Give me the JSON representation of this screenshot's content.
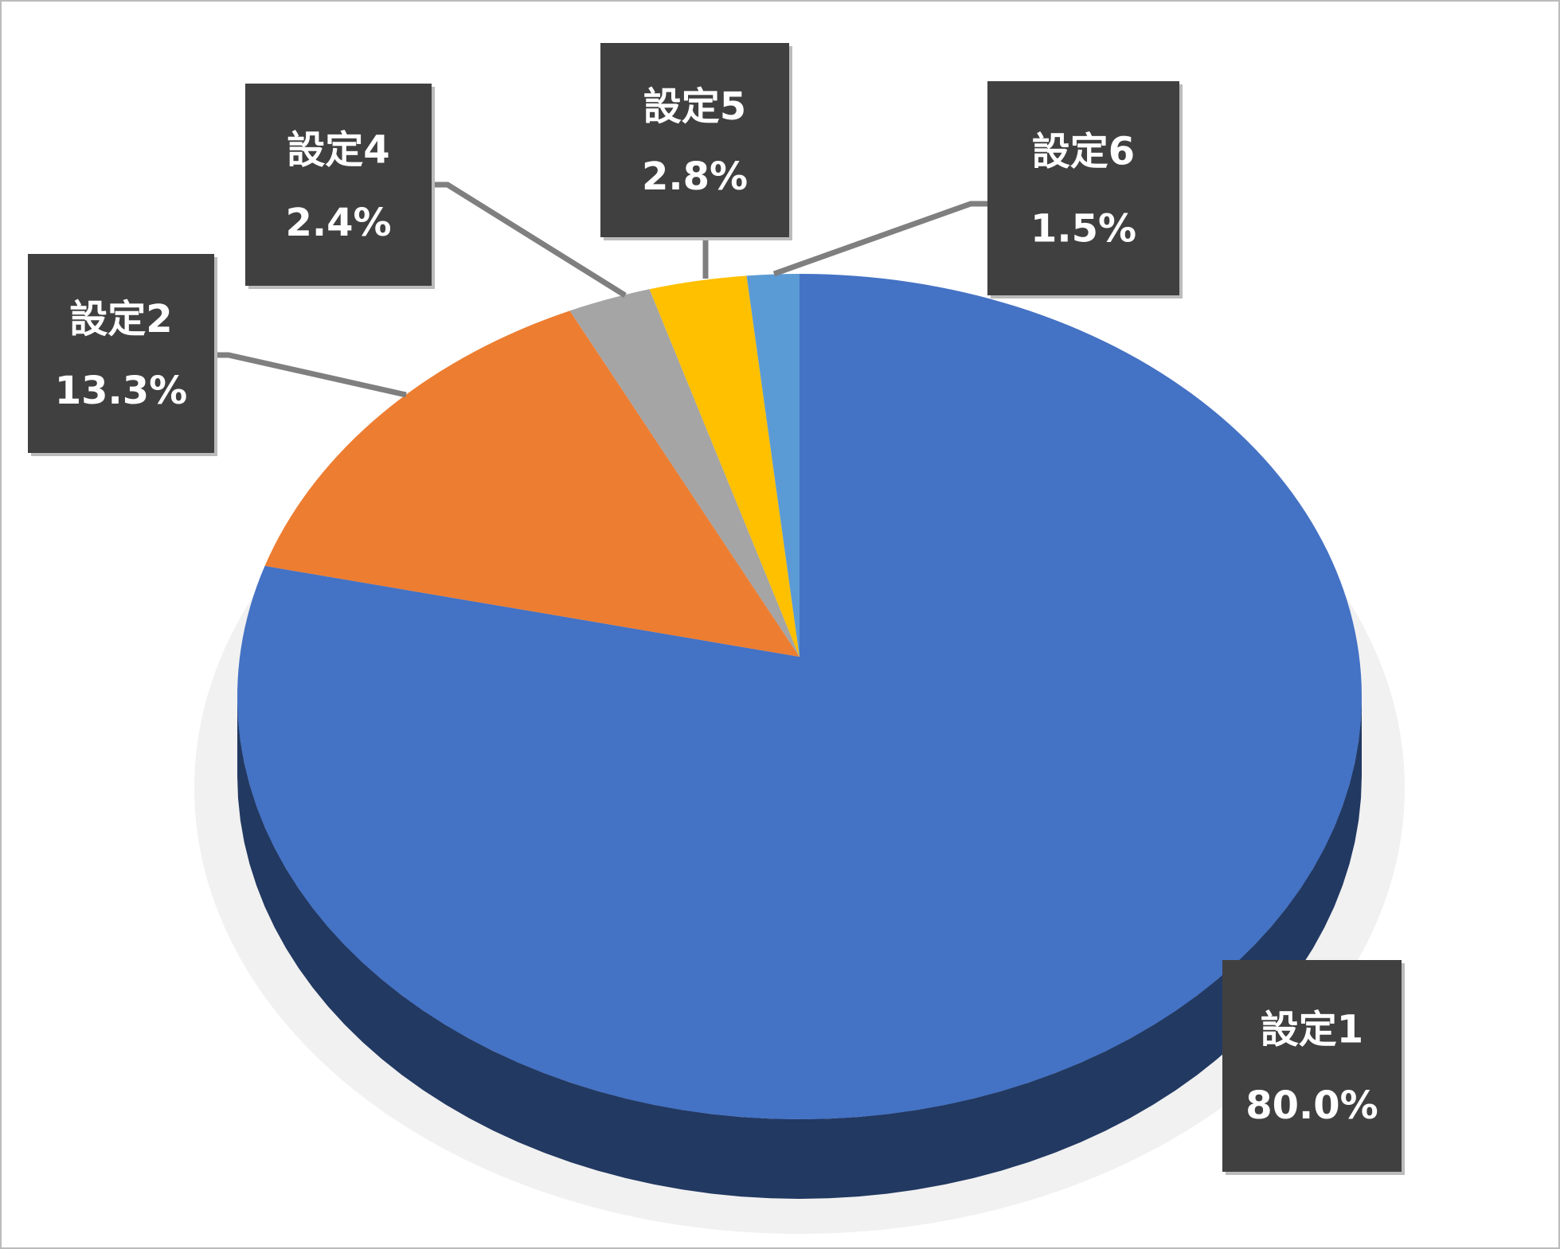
{
  "chart_data": {
    "type": "pie3d",
    "categories": [
      "設定1",
      "設定2",
      "設定4",
      "設定5",
      "設定6"
    ],
    "values": [
      80.0,
      13.3,
      2.4,
      2.8,
      1.5
    ],
    "value_labels": [
      "80.0%",
      "13.3%",
      "2.4%",
      "2.8%",
      "1.5%"
    ],
    "colors": [
      "#4472c4",
      "#ed7d31",
      "#a5a5a5",
      "#ffc000",
      "#5b9bd5"
    ]
  }
}
